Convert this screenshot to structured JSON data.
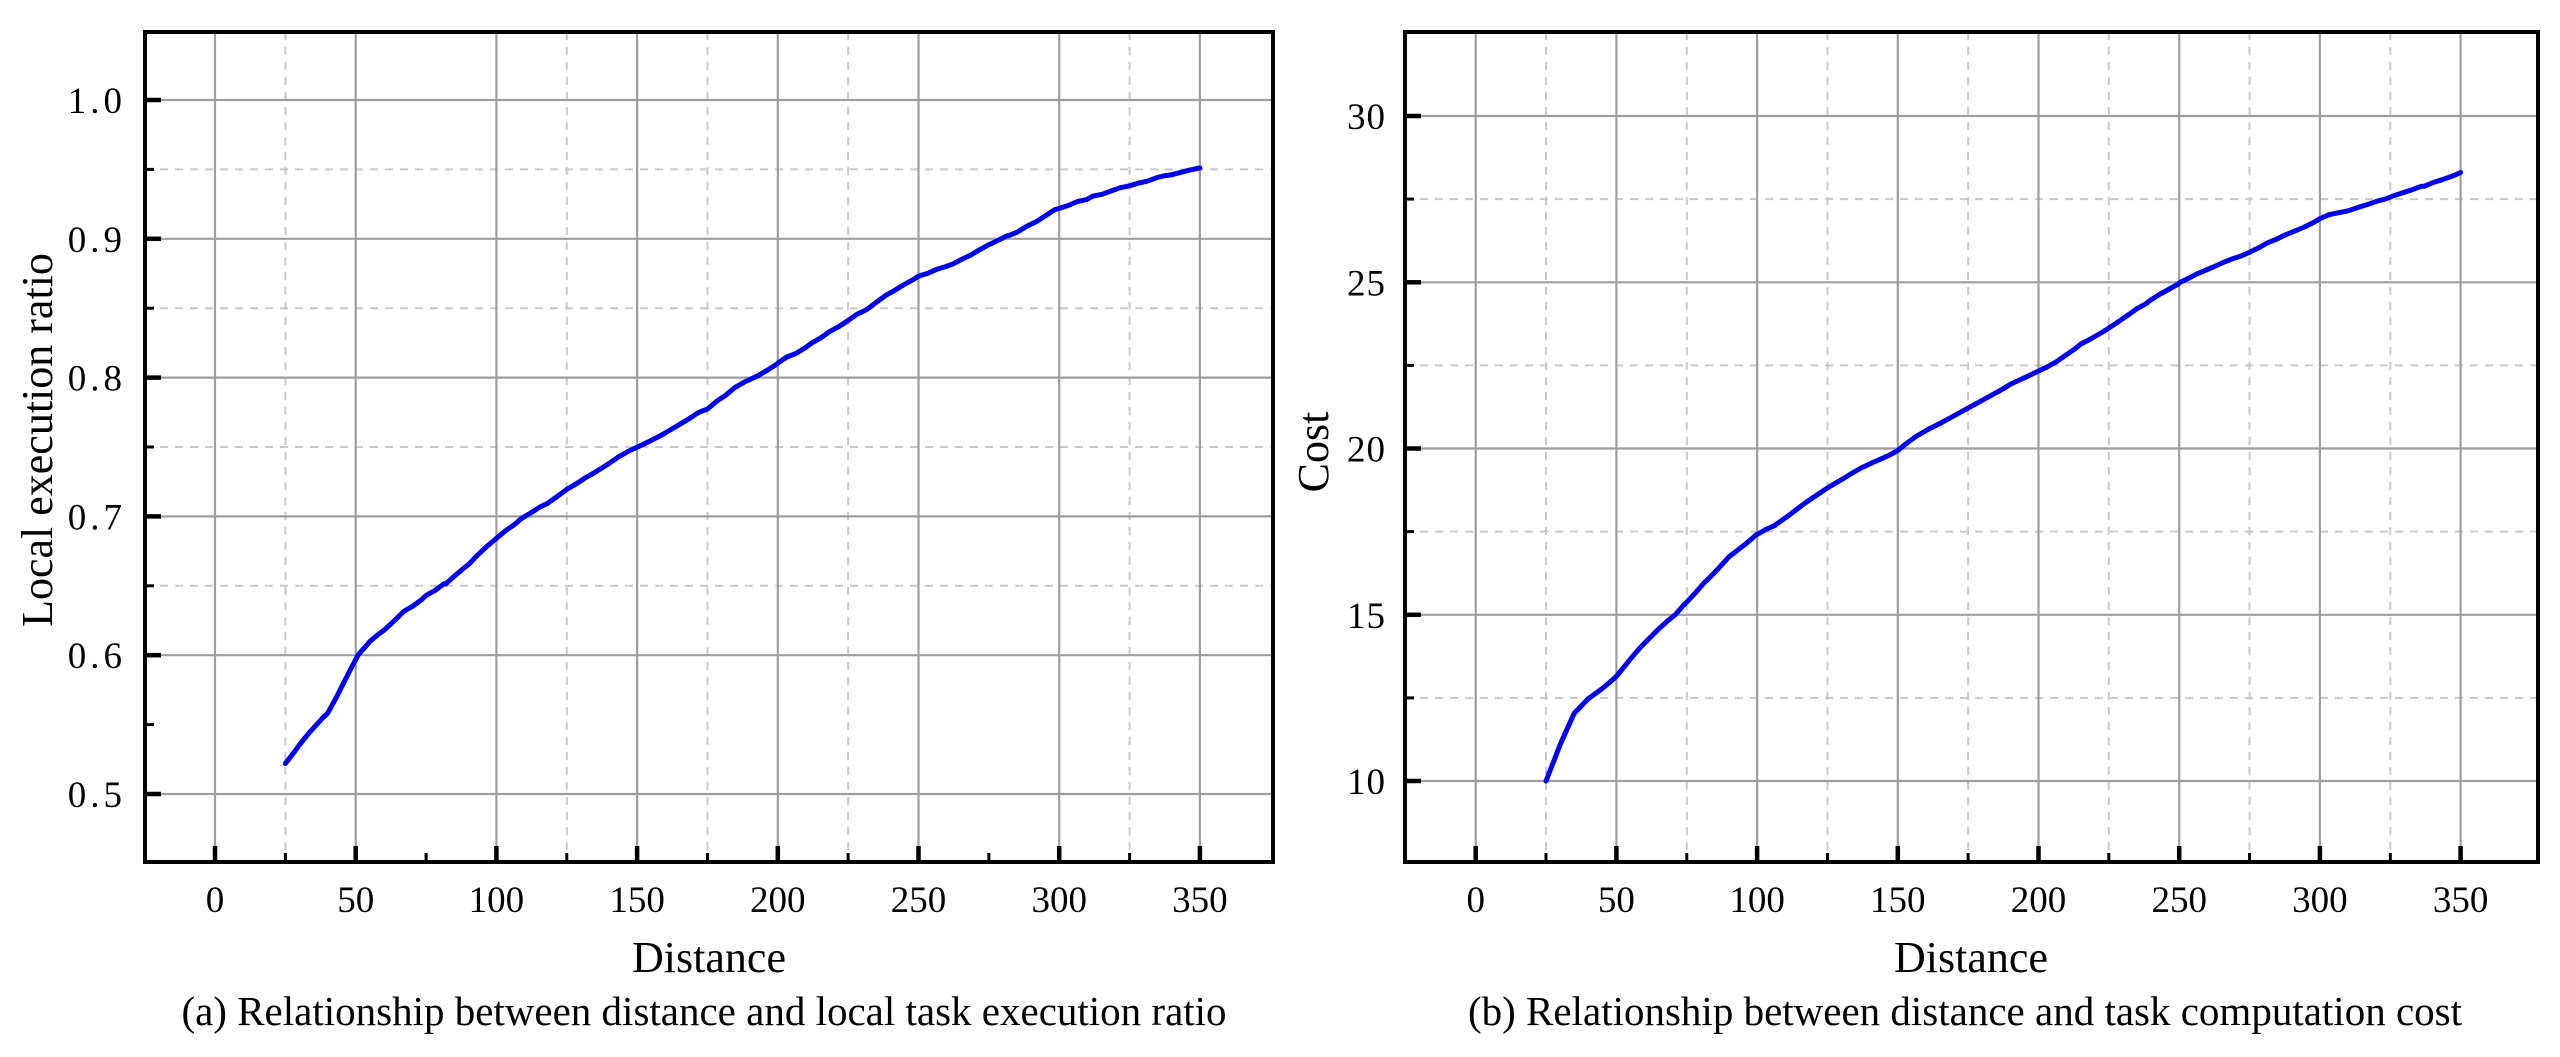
{
  "page": {
    "background": "#ffffff"
  },
  "style": {
    "curve_color": "#0000ee",
    "grid_major_color": "#9e9e9e",
    "grid_minor_color": "#c8c8c8",
    "frame_color": "#000000",
    "tick_color": "#000000"
  },
  "chart_data": [
    {
      "type": "line",
      "panel": "a",
      "title": "(a) Relationship between distance and local task execution ratio",
      "xlabel": "Distance",
      "ylabel": "Local execution ratio",
      "xlim": [
        -25,
        376
      ],
      "ylim": [
        0.451,
        1.049
      ],
      "grid": true,
      "x_major_ticks": [
        0,
        50,
        100,
        150,
        200,
        250,
        300,
        350
      ],
      "x_tick_labels": [
        "0",
        "50",
        "100",
        "150",
        "200",
        "250",
        "300",
        "350"
      ],
      "x_minor_ticks": [
        25,
        75,
        125,
        175,
        225,
        275,
        325
      ],
      "x_minor_grid": [
        25,
        125,
        175,
        225,
        325
      ],
      "y_major_ticks": [
        0.5,
        0.6,
        0.7,
        0.8,
        0.9,
        1.0
      ],
      "y_tick_labels": [
        "0.5",
        "0.6",
        "0.7",
        "0.8",
        "0.9",
        "1.0"
      ],
      "y_minor_ticks": [
        0.55,
        0.65,
        0.75,
        0.85,
        0.95
      ],
      "y_minor_grid": [
        0.65,
        0.75,
        0.85,
        0.95
      ],
      "series": [
        {
          "name": "local-execution-ratio",
          "color": "#0000ee",
          "points": [
            [
              25,
              0.522
            ],
            [
              30,
              0.535
            ],
            [
              35,
              0.547
            ],
            [
              40,
              0.558
            ],
            [
              45,
              0.576
            ],
            [
              51,
              0.6
            ],
            [
              55,
              0.608
            ],
            [
              60,
              0.617
            ],
            [
              67,
              0.63
            ],
            [
              75,
              0.642
            ],
            [
              82,
              0.652
            ],
            [
              90,
              0.668
            ],
            [
              100,
              0.687
            ],
            [
              109,
              0.7
            ],
            [
              118,
              0.712
            ],
            [
              125,
              0.722
            ],
            [
              137,
              0.737
            ],
            [
              150,
              0.752
            ],
            [
              162,
              0.765
            ],
            [
              175,
              0.779
            ],
            [
              190,
              0.8
            ],
            [
              200,
              0.813
            ],
            [
              212,
              0.826
            ],
            [
              225,
              0.843
            ],
            [
              235,
              0.855
            ],
            [
              250,
              0.873
            ],
            [
              262,
              0.882
            ],
            [
              275,
              0.893
            ],
            [
              282,
              0.9
            ],
            [
              300,
              0.92
            ],
            [
              312,
              0.928
            ],
            [
              325,
              0.936
            ],
            [
              337,
              0.944
            ],
            [
              350,
              0.951
            ]
          ]
        }
      ]
    },
    {
      "type": "line",
      "panel": "b",
      "title": "(b) Relationship between distance and task computation cost",
      "xlabel": "Distance",
      "ylabel": "Cost",
      "xlim": [
        -25,
        377
      ],
      "ylim": [
        7.56,
        32.5
      ],
      "grid": true,
      "x_major_ticks": [
        0,
        50,
        100,
        150,
        200,
        250,
        300,
        350
      ],
      "x_tick_labels": [
        "0",
        "50",
        "100",
        "150",
        "200",
        "250",
        "300",
        "350"
      ],
      "x_minor_ticks": [
        25,
        75,
        125,
        175,
        225,
        275,
        325
      ],
      "x_minor_grid": [
        25,
        75,
        125,
        175,
        225,
        275,
        325
      ],
      "y_major_ticks": [
        10,
        15,
        20,
        25,
        30
      ],
      "y_tick_labels": [
        "10",
        "15",
        "20",
        "25",
        "30"
      ],
      "y_minor_ticks": [
        12.5,
        17.5,
        22.5,
        27.5
      ],
      "y_minor_grid": [
        12.5,
        17.5,
        22.5,
        27.5
      ],
      "series": [
        {
          "name": "task-computation-cost",
          "color": "#0000ee",
          "points": [
            [
              25,
              10.0
            ],
            [
              30,
              11.1
            ],
            [
              35,
              12.05
            ],
            [
              40,
              12.5
            ],
            [
              45,
              12.8
            ],
            [
              50,
              13.15
            ],
            [
              55,
              13.7
            ],
            [
              60,
              14.2
            ],
            [
              65,
              14.6
            ],
            [
              71,
              15.0
            ],
            [
              75,
              15.42
            ],
            [
              82,
              16.1
            ],
            [
              90,
              16.8
            ],
            [
              100,
              17.5
            ],
            [
              107,
              17.8
            ],
            [
              118,
              18.5
            ],
            [
              125,
              18.9
            ],
            [
              137,
              19.5
            ],
            [
              150,
              20.0
            ],
            [
              162,
              20.7
            ],
            [
              175,
              21.3
            ],
            [
              190,
              22.0
            ],
            [
              203,
              22.5
            ],
            [
              215,
              23.2
            ],
            [
              225,
              23.7
            ],
            [
              240,
              24.5
            ],
            [
              250,
              25.0
            ],
            [
              262,
              25.4
            ],
            [
              275,
              25.9
            ],
            [
              288,
              26.4
            ],
            [
              300,
              26.9
            ],
            [
              311,
              27.2
            ],
            [
              323,
              27.5
            ],
            [
              337,
              27.9
            ],
            [
              350,
              28.3
            ]
          ]
        }
      ]
    }
  ]
}
